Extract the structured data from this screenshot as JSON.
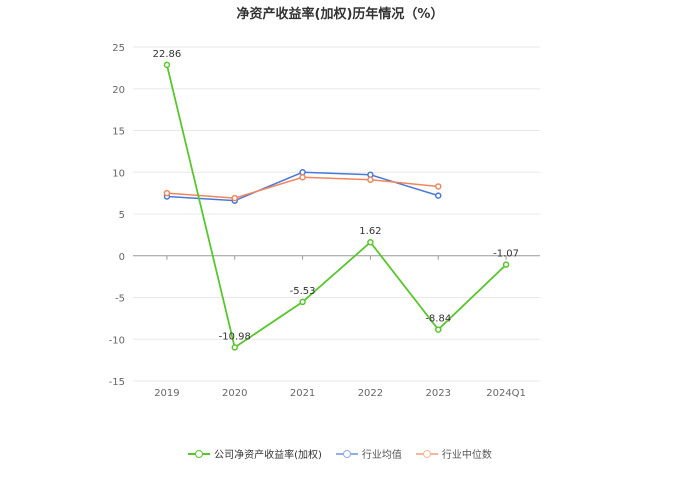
{
  "chart_data": {
    "type": "line",
    "title": "净资产收益率(加权)历年情况（%）",
    "categories": [
      "2019",
      "2020",
      "2021",
      "2022",
      "2023",
      "2024Q1"
    ],
    "ylim": [
      -15,
      25
    ],
    "yticks": [
      25,
      20,
      15,
      10,
      5,
      0,
      -5,
      -10,
      -15
    ],
    "grid": true,
    "legend_position": "bottom",
    "series": [
      {
        "name": "公司净资产收益率(加权)",
        "color": "#5ac62f",
        "values": [
          22.86,
          -10.98,
          -5.53,
          1.62,
          -8.84,
          -1.07
        ],
        "labels": [
          "22.86",
          "-10.98",
          "-5.53",
          "1.62",
          "-8.84",
          "-1.07"
        ]
      },
      {
        "name": "行业均值",
        "color": "#4a78d8",
        "values": [
          7.1,
          6.6,
          10.0,
          9.7,
          7.2,
          null
        ]
      },
      {
        "name": "行业中位数",
        "color": "#f0865e",
        "values": [
          7.5,
          6.9,
          9.4,
          9.1,
          8.3,
          null
        ]
      }
    ]
  }
}
